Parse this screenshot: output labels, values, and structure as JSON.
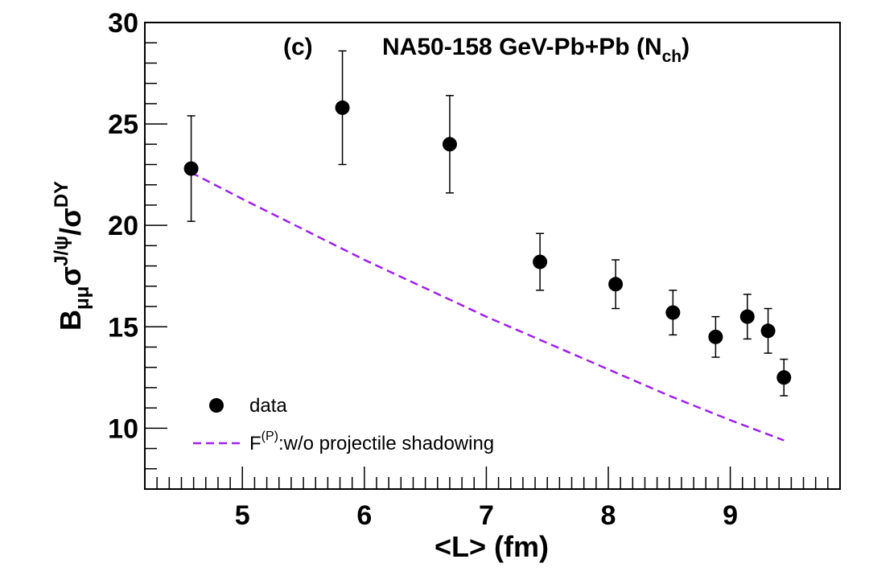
{
  "chart_data": {
    "type": "scatter",
    "panel_label": "(c)",
    "title": {
      "main": "NA50-158 GeV-Pb+Pb (N",
      "sub": "ch",
      "close": ")"
    },
    "xlabel": "<L> (fm)",
    "ylabel": {
      "b": "B",
      "b_sub": "μμ",
      "sigma": "σ",
      "jpsi_sup": "J/ψ",
      "slash": "/σ",
      "dy_sup": "DY"
    },
    "xlim": [
      4.2,
      9.9
    ],
    "ylim": [
      7,
      30
    ],
    "xticks": [
      5,
      6,
      7,
      8,
      9
    ],
    "yticks": [
      10,
      15,
      20,
      25,
      30
    ],
    "xtick_labels": [
      "5",
      "6",
      "7",
      "8",
      "9"
    ],
    "ytick_labels": [
      "10",
      "15",
      "20",
      "25",
      "30"
    ],
    "series": [
      {
        "name": "data",
        "kind": "points",
        "color": "#000000",
        "x": [
          4.58,
          5.82,
          6.7,
          7.44,
          8.06,
          8.53,
          8.88,
          9.14,
          9.31,
          9.44
        ],
        "y": [
          22.8,
          25.8,
          24.0,
          18.2,
          17.1,
          15.7,
          14.5,
          15.5,
          14.8,
          12.5
        ],
        "err": [
          2.6,
          2.8,
          2.4,
          1.4,
          1.2,
          1.1,
          1.0,
          1.1,
          1.1,
          0.9
        ]
      },
      {
        "name": "F(P):w/o projectile shadowing",
        "kind": "line",
        "color": "#a020f0",
        "x": [
          4.58,
          5.0,
          5.5,
          6.0,
          6.5,
          7.0,
          7.5,
          8.0,
          8.5,
          9.0,
          9.44
        ],
        "y": [
          22.6,
          21.3,
          19.8,
          18.3,
          16.9,
          15.5,
          14.2,
          12.9,
          11.6,
          10.4,
          9.4
        ]
      }
    ],
    "legend": {
      "position": "bottom-left",
      "entries": [
        {
          "label": "data"
        },
        {
          "label_main": "F",
          "label_sup": "(P)",
          "label_rest": ":w/o projectile shadowing"
        }
      ]
    }
  }
}
